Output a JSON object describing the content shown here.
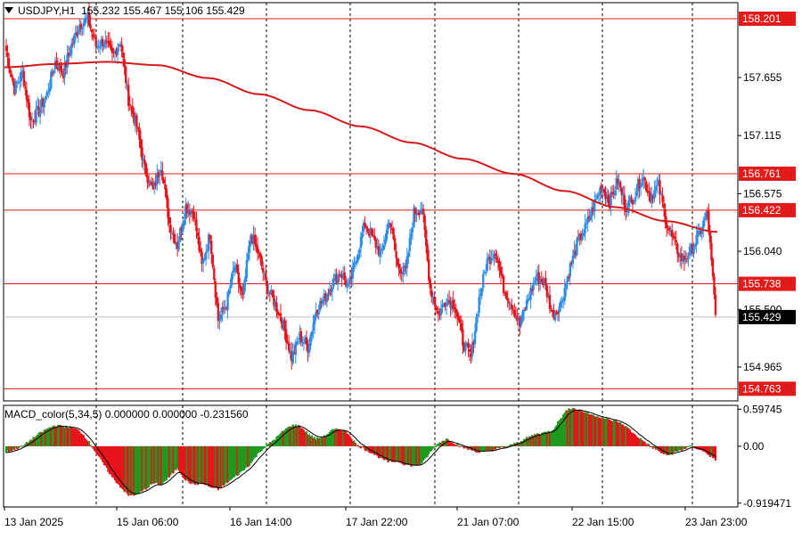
{
  "header": {
    "symbol": "USDJPY,H1",
    "ohlc": "155.232 155.467 155.106 155.429"
  },
  "indicator": {
    "label": "MACD_color(5,34,5) 0.000000 0.000000 -0.231560"
  },
  "colors": {
    "bull": "#2d8ee8",
    "bear": "#e8141c",
    "ma": "#d41a1a",
    "hist_up": "#1f9a1f",
    "hist_down": "#e8141c",
    "hline": "#e21a1a",
    "price_bg": "#000000"
  },
  "chart_data": [
    {
      "type": "candlestick",
      "symbol": "USDJPY",
      "timeframe": "H1",
      "ylim": [
        154.65,
        158.35
      ],
      "grid": "vertical-dashed",
      "y_ticks": [
        "157.655",
        "157.115",
        "156.575",
        "156.040",
        "155.500",
        "154.965"
      ],
      "x_ticks": [
        "13 Jan 2025",
        "15 Jan 06:00",
        "16 Jan 14:00",
        "17 Jan 22:00",
        "21 Jan 07:00",
        "22 Jan 15:00",
        "23 Jan 23:00"
      ],
      "horizontal_levels": [
        "158.201",
        "156.761",
        "156.422",
        "155.738",
        "154.763"
      ],
      "current_price": "155.429",
      "path": [
        157.9,
        157.55,
        157.7,
        157.25,
        157.35,
        157.5,
        157.8,
        157.7,
        157.95,
        158.15,
        158.2,
        157.95,
        158.0,
        157.85,
        158.0,
        157.45,
        157.2,
        156.8,
        156.6,
        156.85,
        156.3,
        156.1,
        156.45,
        156.4,
        155.9,
        156.2,
        155.4,
        155.55,
        155.9,
        155.6,
        156.2,
        156.0,
        155.7,
        155.55,
        155.35,
        155.05,
        155.25,
        155.15,
        155.5,
        155.6,
        155.75,
        155.85,
        155.7,
        156.0,
        156.3,
        156.15,
        156.0,
        156.35,
        155.9,
        155.85,
        156.4,
        156.45,
        155.7,
        155.45,
        155.6,
        155.55,
        155.2,
        155.05,
        155.6,
        155.95,
        156.05,
        155.7,
        155.55,
        155.35,
        155.6,
        155.8,
        155.75,
        155.45,
        155.55,
        155.85,
        156.1,
        156.25,
        156.45,
        156.65,
        156.5,
        156.7,
        156.45,
        156.55,
        156.75,
        156.55,
        156.65,
        156.3,
        156.1,
        155.95,
        156.05,
        156.2,
        156.4,
        155.45
      ],
      "ma_path": [
        157.75,
        157.78,
        157.8,
        157.77,
        157.65,
        157.5,
        157.35,
        157.2,
        157.05,
        156.9,
        156.76,
        156.6,
        156.45,
        156.32,
        156.22
      ],
      "candles_per_segment": 6
    },
    {
      "type": "bar",
      "name": "MACD_color(5,34,5)",
      "ylim": [
        -0.98,
        0.66
      ],
      "y_ticks": [
        "0.59745",
        "0.00",
        "-0.919471"
      ],
      "values": [
        -0.1,
        -0.05,
        0.0,
        0.1,
        0.2,
        0.28,
        0.34,
        0.32,
        0.3,
        0.25,
        0.1,
        -0.1,
        -0.3,
        -0.5,
        -0.65,
        -0.8,
        -0.78,
        -0.7,
        -0.6,
        -0.62,
        -0.5,
        -0.35,
        -0.55,
        -0.62,
        -0.6,
        -0.66,
        -0.7,
        -0.6,
        -0.5,
        -0.4,
        -0.28,
        -0.1,
        0.02,
        0.12,
        0.25,
        0.34,
        0.33,
        0.2,
        0.12,
        0.16,
        0.26,
        0.28,
        0.2,
        0.02,
        -0.05,
        -0.12,
        -0.2,
        -0.26,
        -0.24,
        -0.3,
        -0.32,
        -0.28,
        -0.1,
        0.05,
        0.12,
        0.05,
        -0.02,
        -0.06,
        -0.1,
        -0.08,
        -0.05,
        -0.02,
        0.02,
        0.08,
        0.14,
        0.2,
        0.22,
        0.26,
        0.45,
        0.62,
        0.6,
        0.55,
        0.5,
        0.47,
        0.42,
        0.4,
        0.32,
        0.2,
        0.1,
        0.0,
        -0.08,
        -0.15,
        -0.1,
        -0.05,
        0.0,
        -0.05,
        -0.12,
        -0.23
      ]
    }
  ]
}
